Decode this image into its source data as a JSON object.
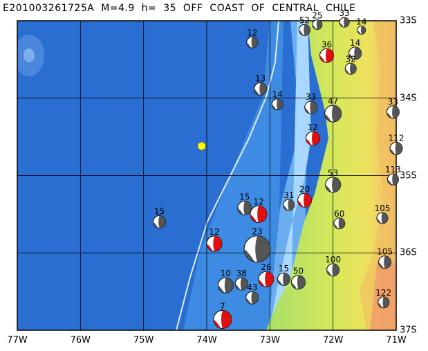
{
  "title": "E201003261725A  M=4.9  h=  35  OFF  COAST  OF  CENTRAL  CHILE",
  "x_ticks": [
    "77W",
    "76W",
    "75W",
    "74W",
    "73W",
    "72W",
    "71W"
  ],
  "y_ticks": [
    "33S",
    "34S",
    "35S",
    "36S",
    "37S"
  ],
  "extent": {
    "lon_min": -77,
    "lon_max": -71,
    "lat_min": -37,
    "lat_max": -33
  },
  "colors": {
    "deep_ocean": "#1f5fc4",
    "mid_ocean": "#3a8ae0",
    "shelf": "#9fd3ff",
    "land_low": "#a8e06a",
    "land_mid": "#e8e85a",
    "land_high": "#f0b070",
    "beachball_red": "#e01010",
    "epicenter": "#ffff00"
  },
  "epicenter": {
    "lon": -74.08,
    "lat": -34.62,
    "icon": "hexagon-icon"
  },
  "mechanisms": [
    {
      "label": "12",
      "lon": -73.28,
      "lat": -33.28,
      "r": 8,
      "red": false
    },
    {
      "label": "52",
      "lon": -72.45,
      "lat": -33.12,
      "r": 8,
      "red": false
    },
    {
      "label": "25",
      "lon": -72.25,
      "lat": -33.05,
      "r": 7,
      "red": false
    },
    {
      "label": "33",
      "lon": -71.82,
      "lat": -33.02,
      "r": 7,
      "red": false
    },
    {
      "label": "14",
      "lon": -71.55,
      "lat": -33.12,
      "r": 6,
      "red": false
    },
    {
      "label": "14",
      "lon": -71.65,
      "lat": -33.42,
      "r": 9,
      "red": false
    },
    {
      "label": "36",
      "lon": -72.1,
      "lat": -33.45,
      "r": 10,
      "red": true
    },
    {
      "label": "32",
      "lon": -71.72,
      "lat": -33.62,
      "r": 8,
      "red": false
    },
    {
      "label": "13",
      "lon": -73.15,
      "lat": -33.88,
      "r": 9,
      "red": false
    },
    {
      "label": "14",
      "lon": -72.88,
      "lat": -34.08,
      "r": 8,
      "red": false
    },
    {
      "label": "33",
      "lon": -72.35,
      "lat": -34.12,
      "r": 9,
      "red": false
    },
    {
      "label": "33",
      "lon": -71.05,
      "lat": -34.18,
      "r": 9,
      "red": false
    },
    {
      "label": "47",
      "lon": -72.0,
      "lat": -34.2,
      "r": 12,
      "red": false
    },
    {
      "label": "12",
      "lon": -72.32,
      "lat": -34.52,
      "r": 10,
      "red": true
    },
    {
      "label": "112",
      "lon": -71.0,
      "lat": -34.65,
      "r": 9,
      "red": false
    },
    {
      "label": "53",
      "lon": -72.0,
      "lat": -35.12,
      "r": 11,
      "red": false
    },
    {
      "label": "113",
      "lon": -71.05,
      "lat": -35.05,
      "r": 8,
      "red": false
    },
    {
      "label": "15",
      "lon": -73.4,
      "lat": -35.42,
      "r": 10,
      "red": false
    },
    {
      "label": "12",
      "lon": -73.18,
      "lat": -35.5,
      "r": 12,
      "red": true
    },
    {
      "label": "31",
      "lon": -72.7,
      "lat": -35.38,
      "r": 8,
      "red": false
    },
    {
      "label": "20",
      "lon": -72.45,
      "lat": -35.32,
      "r": 10,
      "red": true
    },
    {
      "label": "15",
      "lon": -74.75,
      "lat": -35.6,
      "r": 9,
      "red": false
    },
    {
      "label": "60",
      "lon": -71.9,
      "lat": -35.62,
      "r": 8,
      "red": false
    },
    {
      "label": "105",
      "lon": -71.22,
      "lat": -35.55,
      "r": 8,
      "red": false
    },
    {
      "label": "12",
      "lon": -73.88,
      "lat": -35.88,
      "r": 11,
      "red": true
    },
    {
      "label": "23",
      "lon": -73.2,
      "lat": -35.95,
      "r": 19,
      "red": false
    },
    {
      "label": "100",
      "lon": -72.0,
      "lat": -36.22,
      "r": 9,
      "red": false
    },
    {
      "label": "105",
      "lon": -71.18,
      "lat": -36.12,
      "r": 9,
      "red": false
    },
    {
      "label": "26",
      "lon": -73.06,
      "lat": -36.34,
      "r": 11,
      "red": true
    },
    {
      "label": "15",
      "lon": -72.78,
      "lat": -36.34,
      "r": 9,
      "red": false
    },
    {
      "label": "50",
      "lon": -72.55,
      "lat": -36.38,
      "r": 10,
      "red": false
    },
    {
      "label": "38",
      "lon": -73.45,
      "lat": -36.4,
      "r": 9,
      "red": false
    },
    {
      "label": "10",
      "lon": -73.7,
      "lat": -36.42,
      "r": 11,
      "red": false
    },
    {
      "label": "43",
      "lon": -73.28,
      "lat": -36.58,
      "r": 9,
      "red": false
    },
    {
      "label": "122",
      "lon": -71.2,
      "lat": -36.64,
      "r": 8,
      "red": false
    },
    {
      "label": "7",
      "lon": -73.75,
      "lat": -36.86,
      "r": 13,
      "red": true
    }
  ]
}
